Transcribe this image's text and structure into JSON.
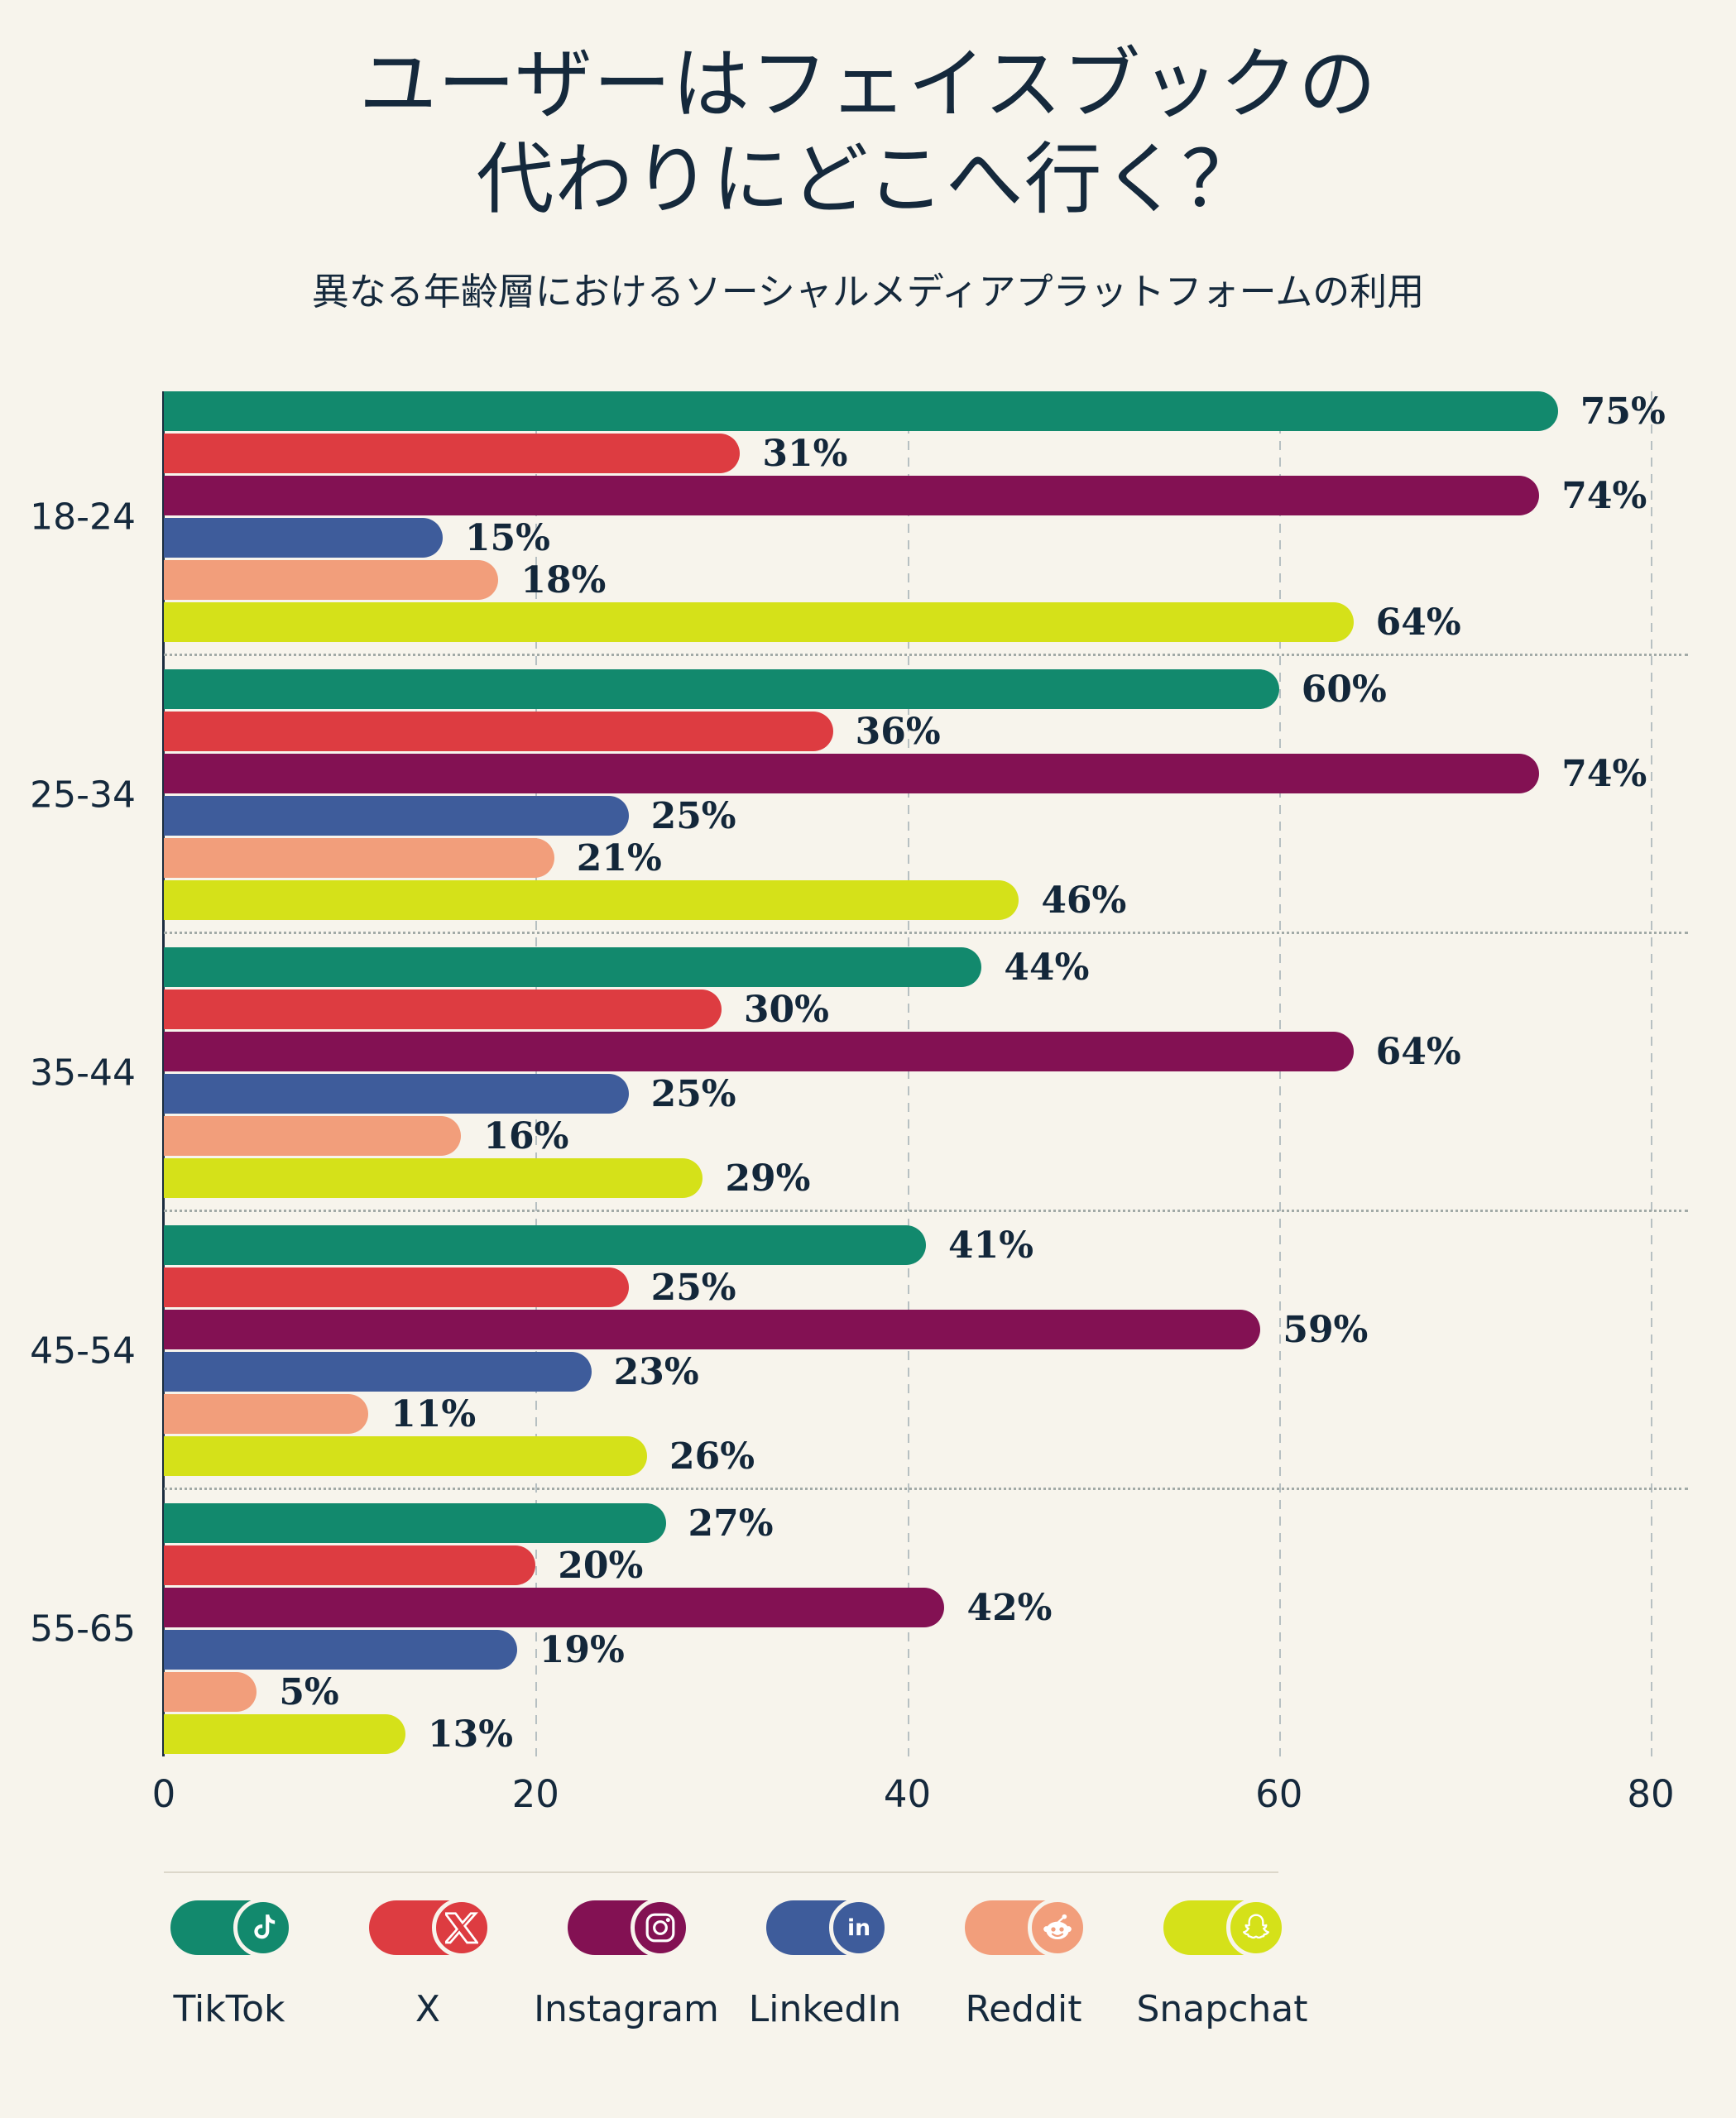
{
  "title": {
    "line1": "ユーザーはフェイスブックの",
    "line2": "代わりにどこへ行く？"
  },
  "subtitle": "異なる年齢層におけるソーシャルメディアプラットフォームの利用",
  "chart_data": {
    "type": "bar",
    "orientation": "horizontal",
    "title": "ユーザーはフェイスブックの代わりにどこへ行く？",
    "subtitle": "異なる年齢層におけるソーシャルメディアプラットフォームの利用",
    "categories": [
      "18-24",
      "25-34",
      "35-44",
      "45-54",
      "55-65"
    ],
    "series": [
      {
        "name": "TikTok",
        "color": "#12896D",
        "values": [
          75,
          60,
          44,
          41,
          27
        ]
      },
      {
        "name": "X",
        "color": "#DD3C41",
        "values": [
          31,
          36,
          30,
          25,
          20
        ]
      },
      {
        "name": "Instagram",
        "color": "#831153",
        "values": [
          74,
          74,
          64,
          59,
          42
        ]
      },
      {
        "name": "LinkedIn",
        "color": "#3E5C9B",
        "values": [
          15,
          25,
          25,
          23,
          19
        ]
      },
      {
        "name": "Reddit",
        "color": "#F29E7B",
        "values": [
          18,
          21,
          16,
          11,
          5
        ]
      },
      {
        "name": "Snapchat",
        "color": "#D5E119",
        "values": [
          64,
          46,
          29,
          26,
          13
        ]
      }
    ],
    "value_suffix": "%",
    "x_ticks": [
      0,
      20,
      40,
      60,
      80
    ],
    "xlim": [
      0,
      82
    ],
    "grid": "vertical-dashed",
    "legend_position": "bottom"
  },
  "legend": {
    "items": [
      {
        "label": "TikTok",
        "icon": "tiktok-icon",
        "color": "#12896D"
      },
      {
        "label": "X",
        "icon": "x-icon",
        "color": "#DD3C41"
      },
      {
        "label": "Instagram",
        "icon": "instagram-icon",
        "color": "#831153"
      },
      {
        "label": "LinkedIn",
        "icon": "linkedin-icon",
        "color": "#3E5C9B"
      },
      {
        "label": "Reddit",
        "icon": "reddit-icon",
        "color": "#F29E7B"
      },
      {
        "label": "Snapchat",
        "icon": "snapchat-icon",
        "color": "#D5E119"
      }
    ]
  },
  "colors": {
    "background": "#F7F4EC",
    "text": "#15293C",
    "axis": "#1B2C3E",
    "gridline": "#B7C0C2",
    "separator": "#DCD7CA"
  }
}
